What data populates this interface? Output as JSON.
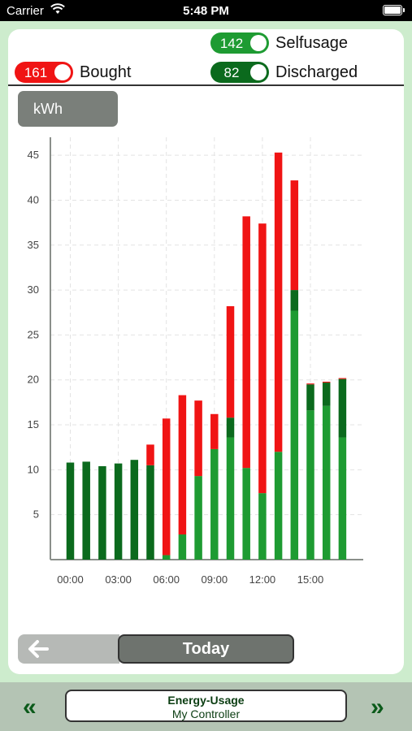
{
  "status": {
    "carrier": "Carrier",
    "time": "5:48 PM"
  },
  "legend": {
    "selfusage": {
      "value": "142",
      "label": "Selfusage",
      "color": "#1e9b32"
    },
    "bought": {
      "value": "161",
      "label": "Bought",
      "color": "#f01414"
    },
    "discharged": {
      "value": "82",
      "label": "Discharged",
      "color": "#0b6a1d"
    }
  },
  "unit_button": "kWh",
  "nav": {
    "today_label": "Today",
    "back_icon": "arrow-left-icon"
  },
  "bottom": {
    "title": "Energy-Usage",
    "subtitle": "My Controller",
    "prev": "«",
    "next": "»"
  },
  "chart_data": {
    "type": "bar",
    "stacked": true,
    "categories": [
      "00:00",
      "01:00",
      "02:00",
      "03:00",
      "04:00",
      "05:00",
      "06:00",
      "07:00",
      "08:00",
      "09:00",
      "10:00",
      "11:00",
      "12:00",
      "13:00",
      "14:00",
      "15:00",
      "16:00",
      "17:00"
    ],
    "x_tick_labels": [
      "00:00",
      "03:00",
      "06:00",
      "09:00",
      "12:00",
      "15:00"
    ],
    "series": [
      {
        "name": "Selfusage",
        "color": "#1e9b32",
        "values": [
          0,
          0,
          0,
          0,
          0,
          0,
          0.5,
          2.8,
          9.3,
          12.3,
          13.6,
          10.2,
          7.4,
          12.0,
          27.7,
          16.6,
          17.1,
          13.6
        ]
      },
      {
        "name": "Discharged",
        "color": "#0b6a1d",
        "values": [
          10.8,
          10.9,
          10.4,
          10.7,
          11.1,
          10.5,
          0,
          0,
          0,
          0,
          2.2,
          0,
          0,
          0,
          2.3,
          2.9,
          2.6,
          6.5
        ]
      },
      {
        "name": "Bought",
        "color": "#f01414",
        "values": [
          0,
          0,
          0,
          0,
          0,
          2.3,
          15.2,
          15.5,
          8.4,
          3.9,
          12.4,
          28.0,
          30.0,
          33.3,
          12.2,
          0.1,
          0.1,
          0.1
        ]
      }
    ],
    "ylim": [
      0,
      47
    ],
    "yticks": [
      5,
      10,
      15,
      20,
      25,
      30,
      35,
      40,
      45
    ],
    "grid": true
  }
}
